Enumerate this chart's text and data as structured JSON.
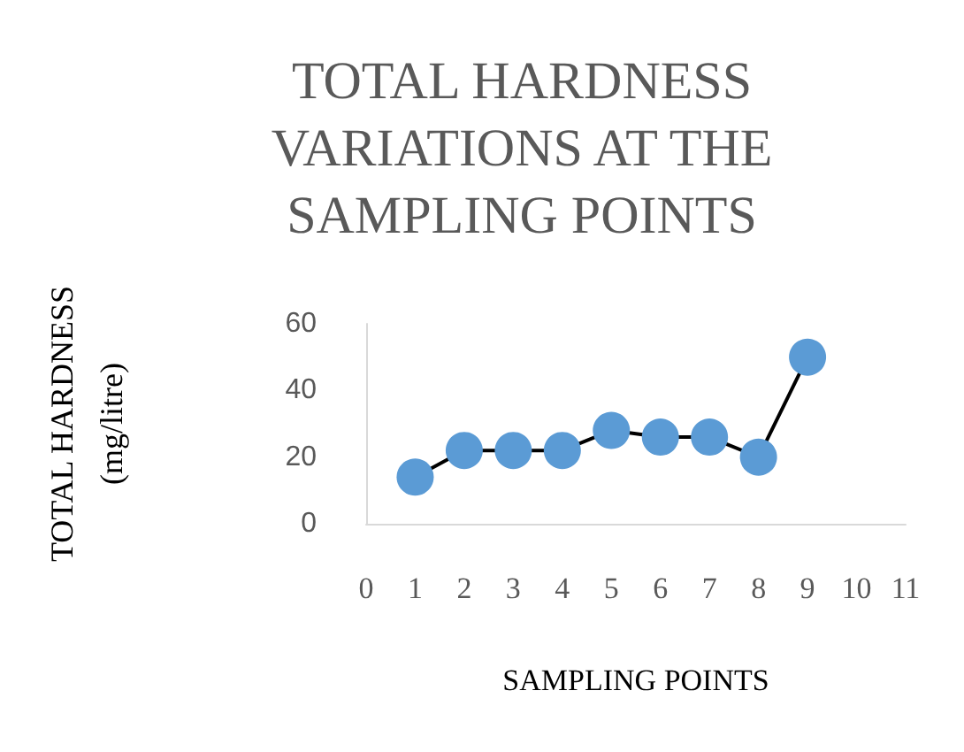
{
  "chart_data": {
    "type": "line",
    "title": "TOTAL HARDNESS VARIATIONS AT THE SAMPLING POINTS",
    "xlabel": "SAMPLING POINTS",
    "ylabel": "TOTAL HARDNESS (mg/litre)",
    "x": [
      1,
      2,
      3,
      4,
      5,
      6,
      7,
      8,
      9
    ],
    "series": [
      {
        "color": "#5b9bd5",
        "values": [
          14,
          22,
          22,
          22,
          28,
          26,
          26,
          20,
          50
        ]
      }
    ],
    "xlim": [
      0,
      11
    ],
    "xticks": [
      0,
      1,
      2,
      3,
      4,
      5,
      6,
      7,
      8,
      9,
      10,
      11
    ],
    "ylim": [
      0,
      60
    ],
    "yticks": [
      0,
      20,
      40,
      60
    ],
    "grid": false,
    "marker": "circle",
    "line_style": "solid"
  }
}
